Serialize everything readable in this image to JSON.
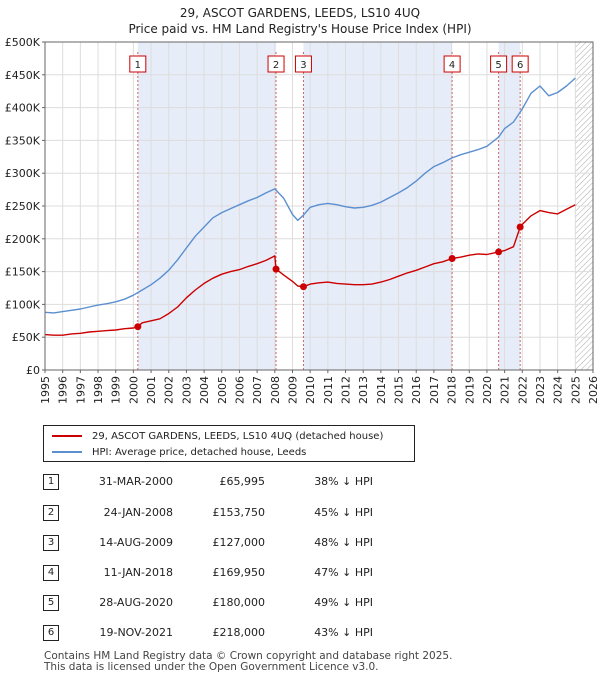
{
  "chart_data": {
    "type": "line",
    "title": "29, ASCOT GARDENS, LEEDS, LS10 4UQ",
    "subtitle": "Price paid vs. HM Land Registry's House Price Index (HPI)",
    "xlim": [
      1995,
      2026
    ],
    "ylim": [
      0,
      500000
    ],
    "x_ticks": [
      "1995",
      "1996",
      "1997",
      "1998",
      "1999",
      "2000",
      "2001",
      "2002",
      "2003",
      "2004",
      "2005",
      "2006",
      "2007",
      "2008",
      "2009",
      "2010",
      "2011",
      "2012",
      "2013",
      "2014",
      "2015",
      "2016",
      "2017",
      "2018",
      "2019",
      "2020",
      "2021",
      "2022",
      "2023",
      "2024",
      "2025",
      "2026"
    ],
    "y_ticks": [
      {
        "value": 0,
        "label": "£0"
      },
      {
        "value": 50000,
        "label": "£50K"
      },
      {
        "value": 100000,
        "label": "£100K"
      },
      {
        "value": 150000,
        "label": "£150K"
      },
      {
        "value": 200000,
        "label": "£200K"
      },
      {
        "value": 250000,
        "label": "£250K"
      },
      {
        "value": 300000,
        "label": "£300K"
      },
      {
        "value": 350000,
        "label": "£350K"
      },
      {
        "value": 400000,
        "label": "£400K"
      },
      {
        "value": 450000,
        "label": "£450K"
      },
      {
        "value": 500000,
        "label": "£500K"
      }
    ],
    "grid": true,
    "shaded_ranges": [
      [
        2000.25,
        2008.07
      ],
      [
        2009.62,
        2018.03
      ],
      [
        2020.66,
        2021.88
      ]
    ],
    "future_hatch_from": 2025.0,
    "series": [
      {
        "name": "29, ASCOT GARDENS, LEEDS, LS10 4UQ (detached house)",
        "color": "#cc0000",
        "x": [
          1995.0,
          1995.5,
          1996.0,
          1996.5,
          1997.0,
          1997.5,
          1998.0,
          1998.5,
          1999.0,
          1999.5,
          2000.0,
          2000.25,
          2000.5,
          2001.0,
          2001.5,
          2002.0,
          2002.5,
          2003.0,
          2003.5,
          2004.0,
          2004.5,
          2005.0,
          2005.5,
          2006.0,
          2006.5,
          2007.0,
          2007.5,
          2008.0,
          2008.07,
          2008.5,
          2009.0,
          2009.3,
          2009.62,
          2010.0,
          2010.5,
          2011.0,
          2011.5,
          2012.0,
          2012.5,
          2013.0,
          2013.5,
          2014.0,
          2014.5,
          2015.0,
          2015.5,
          2016.0,
          2016.5,
          2017.0,
          2017.5,
          2018.03,
          2018.5,
          2019.0,
          2019.5,
          2020.0,
          2020.66,
          2021.0,
          2021.5,
          2021.88,
          2022.0,
          2022.5,
          2023.0,
          2023.5,
          2024.0,
          2024.5,
          2025.0
        ],
        "y": [
          54000,
          53000,
          53000,
          55000,
          56000,
          58000,
          59000,
          60000,
          61000,
          63000,
          64000,
          65995,
          72000,
          75000,
          78000,
          86000,
          96000,
          110000,
          122000,
          132000,
          140000,
          146000,
          150000,
          153000,
          158000,
          162000,
          167000,
          174000,
          153750,
          145000,
          135000,
          128000,
          127000,
          131000,
          133000,
          134000,
          132000,
          131000,
          130000,
          130000,
          131000,
          134000,
          138000,
          143000,
          148000,
          152000,
          157000,
          162000,
          165000,
          169950,
          172000,
          175000,
          177000,
          176000,
          180000,
          182000,
          188000,
          218000,
          222000,
          235000,
          243000,
          240000,
          238000,
          245000,
          252000
        ]
      },
      {
        "name": "HPI: Average price, detached house, Leeds",
        "color": "#5b8fd0",
        "x": [
          1995.0,
          1995.5,
          1996.0,
          1996.5,
          1997.0,
          1997.5,
          1998.0,
          1998.5,
          1999.0,
          1999.5,
          2000.0,
          2000.5,
          2001.0,
          2001.5,
          2002.0,
          2002.5,
          2003.0,
          2003.5,
          2004.0,
          2004.5,
          2005.0,
          2005.5,
          2006.0,
          2006.5,
          2007.0,
          2007.5,
          2008.0,
          2008.5,
          2009.0,
          2009.3,
          2009.62,
          2010.0,
          2010.5,
          2011.0,
          2011.5,
          2012.0,
          2012.5,
          2013.0,
          2013.5,
          2014.0,
          2014.5,
          2015.0,
          2015.5,
          2016.0,
          2016.5,
          2017.0,
          2017.5,
          2018.0,
          2018.5,
          2019.0,
          2019.5,
          2020.0,
          2020.66,
          2021.0,
          2021.5,
          2022.0,
          2022.5,
          2023.0,
          2023.5,
          2024.0,
          2024.5,
          2025.0
        ],
        "y": [
          88000,
          87000,
          89000,
          91000,
          93000,
          96000,
          99000,
          101000,
          104000,
          108000,
          114000,
          122000,
          130000,
          140000,
          152000,
          168000,
          186000,
          204000,
          218000,
          232000,
          240000,
          246000,
          252000,
          258000,
          263000,
          270000,
          276000,
          262000,
          237000,
          228000,
          236000,
          248000,
          252000,
          254000,
          252000,
          249000,
          247000,
          248000,
          251000,
          256000,
          263000,
          270000,
          278000,
          288000,
          300000,
          310000,
          316000,
          323000,
          328000,
          332000,
          336000,
          341000,
          355000,
          368000,
          378000,
          398000,
          422000,
          433000,
          418000,
          423000,
          433000,
          445000
        ]
      }
    ],
    "sales": [
      {
        "label": "1",
        "x": 2000.25,
        "y": 65995
      },
      {
        "label": "2",
        "x": 2008.07,
        "y": 153750
      },
      {
        "label": "3",
        "x": 2009.62,
        "y": 127000
      },
      {
        "label": "4",
        "x": 2018.03,
        "y": 169950
      },
      {
        "label": "5",
        "x": 2020.66,
        "y": 180000
      },
      {
        "label": "6",
        "x": 2021.88,
        "y": 218000
      }
    ]
  },
  "header": {
    "title": "29, ASCOT GARDENS, LEEDS, LS10 4UQ",
    "subtitle": "Price paid vs. HM Land Registry's House Price Index (HPI)"
  },
  "legend": {
    "entries": [
      {
        "label": "29, ASCOT GARDENS, LEEDS, LS10 4UQ (detached house)",
        "color": "#cc0000"
      },
      {
        "label": "HPI: Average price, detached house, Leeds",
        "color": "#5b8fd0"
      }
    ]
  },
  "transactions": [
    {
      "num": "1",
      "date": "31-MAR-2000",
      "price": "£65,995",
      "hpi": "38% ↓ HPI"
    },
    {
      "num": "2",
      "date": "24-JAN-2008",
      "price": "£153,750",
      "hpi": "45% ↓ HPI"
    },
    {
      "num": "3",
      "date": "14-AUG-2009",
      "price": "£127,000",
      "hpi": "48% ↓ HPI"
    },
    {
      "num": "4",
      "date": "11-JAN-2018",
      "price": "£169,950",
      "hpi": "47% ↓ HPI"
    },
    {
      "num": "5",
      "date": "28-AUG-2020",
      "price": "£180,000",
      "hpi": "49% ↓ HPI"
    },
    {
      "num": "6",
      "date": "19-NOV-2021",
      "price": "£218,000",
      "hpi": "43% ↓ HPI"
    }
  ],
  "footer": {
    "line1": "Contains HM Land Registry data © Crown copyright and database right 2025.",
    "line2": "This data is licensed under the Open Government Licence v3.0."
  }
}
